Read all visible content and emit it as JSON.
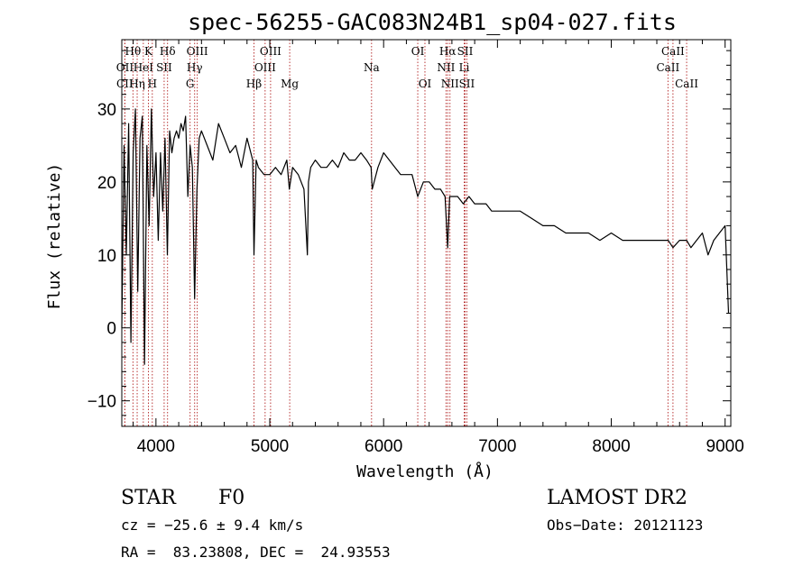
{
  "chart_data": {
    "type": "line",
    "title": "spec-56255-GAC083N24B1_sp04-027.fits",
    "xlabel": "Wavelength (Å)",
    "ylabel": "Flux (relative)",
    "xlim": [
      3700,
      9050
    ],
    "ylim": [
      -13.5,
      39.5
    ],
    "xticks": [
      4000,
      5000,
      6000,
      7000,
      8000,
      9000
    ],
    "yticks": [
      -10,
      0,
      10,
      20,
      30
    ],
    "grid": false,
    "series": [
      {
        "x": [
          3700,
          3720,
          3740,
          3760,
          3780,
          3800,
          3820,
          3840,
          3860,
          3880,
          3900,
          3920,
          3940,
          3960,
          3980,
          4000,
          4020,
          4040,
          4060,
          4080,
          4100,
          4120,
          4140,
          4160,
          4180,
          4200,
          4220,
          4240,
          4260,
          4280,
          4300,
          4320,
          4340,
          4360,
          4380,
          4400,
          4450,
          4500,
          4550,
          4600,
          4650,
          4700,
          4750,
          4800,
          4850,
          4861,
          4880,
          4900,
          4950,
          5000,
          5050,
          5100,
          5150,
          5172,
          5200,
          5250,
          5300,
          5330,
          5340,
          5360,
          5400,
          5450,
          5500,
          5550,
          5600,
          5650,
          5700,
          5750,
          5800,
          5850,
          5890,
          5900,
          5950,
          6000,
          6050,
          6100,
          6150,
          6200,
          6250,
          6300,
          6350,
          6400,
          6450,
          6500,
          6540,
          6563,
          6580,
          6600,
          6650,
          6700,
          6750,
          6800,
          6850,
          6900,
          6950,
          7000,
          7100,
          7200,
          7300,
          7400,
          7500,
          7600,
          7700,
          7800,
          7900,
          8000,
          8100,
          8200,
          8300,
          8400,
          8500,
          8542,
          8600,
          8662,
          8700,
          8750,
          8800,
          8850,
          8900,
          8950,
          9000,
          9030
        ],
        "y": [
          0,
          25,
          10,
          28,
          -2,
          24,
          30,
          5,
          26,
          29,
          -5,
          25,
          14,
          30,
          18,
          24,
          12,
          24,
          16,
          26,
          10,
          27,
          24,
          26,
          27,
          26,
          28,
          27,
          29,
          18,
          25,
          22,
          4,
          19,
          26,
          27,
          25,
          23,
          28,
          26,
          24,
          25,
          22,
          26,
          23,
          10,
          23,
          22,
          21,
          21,
          22,
          21,
          23,
          19,
          22,
          21,
          19,
          10,
          20,
          22,
          23,
          22,
          22,
          23,
          22,
          24,
          23,
          23,
          24,
          23,
          22,
          19,
          22,
          24,
          23,
          22,
          21,
          21,
          21,
          18,
          20,
          20,
          19,
          19,
          18,
          11,
          18,
          18,
          18,
          17,
          18,
          17,
          17,
          17,
          16,
          16,
          16,
          16,
          15,
          14,
          14,
          13,
          13,
          13,
          12,
          13,
          12,
          12,
          12,
          12,
          12,
          11,
          12,
          12,
          11,
          12,
          13,
          10,
          12,
          13,
          14,
          2
        ]
      }
    ],
    "lines": [
      {
        "label": "CII",
        "w": 3726,
        "row": 2
      },
      {
        "label": "OII",
        "w": 3727,
        "row": 1
      },
      {
        "label": "Hθ",
        "w": 3798,
        "row": 0
      },
      {
        "label": "Hη",
        "w": 3835,
        "row": 2
      },
      {
        "label": "HeI",
        "w": 3889,
        "row": 1
      },
      {
        "label": "K",
        "w": 3934,
        "row": 0
      },
      {
        "label": "H",
        "w": 3968,
        "row": 2
      },
      {
        "label": "SII",
        "w": 4072,
        "row": 1
      },
      {
        "label": "Hδ",
        "w": 4102,
        "row": 0
      },
      {
        "label": "G",
        "w": 4300,
        "row": 2
      },
      {
        "label": "Hγ",
        "w": 4340,
        "row": 1
      },
      {
        "label": "OIII",
        "w": 4363,
        "row": 0
      },
      {
        "label": "Hβ",
        "w": 4861,
        "row": 2
      },
      {
        "label": "OIII",
        "w": 4959,
        "row": 1
      },
      {
        "label": "OIII",
        "w": 5007,
        "row": 0
      },
      {
        "label": "Mg",
        "w": 5175,
        "row": 2
      },
      {
        "label": "Na",
        "w": 5894,
        "row": 1
      },
      {
        "label": "OI",
        "w": 6300,
        "row": 0
      },
      {
        "label": "OI",
        "w": 6363,
        "row": 2
      },
      {
        "label": "NII",
        "w": 6548,
        "row": 1
      },
      {
        "label": "Hα",
        "w": 6563,
        "row": 0
      },
      {
        "label": "NII",
        "w": 6583,
        "row": 2
      },
      {
        "label": "SII",
        "w": 6716,
        "row": 0
      },
      {
        "label": "Li",
        "w": 6708,
        "row": 1
      },
      {
        "label": "SII",
        "w": 6731,
        "row": 2
      },
      {
        "label": "CaII",
        "w": 8498,
        "row": 1
      },
      {
        "label": "CaII",
        "w": 8542,
        "row": 0
      },
      {
        "label": "CaII",
        "w": 8662,
        "row": 2
      }
    ]
  },
  "footer": {
    "class_label": "STAR",
    "subclass": "F0",
    "survey": "LAMOST DR2",
    "cz": "cz = −25.6 ± 9.4 km/s",
    "obs_date": "Obs−Date: 20121123",
    "coords": "RA =  83.23808, DEC =  24.93553"
  },
  "colors": {
    "spectrum": "#000000",
    "line_markers": "#b22222"
  }
}
